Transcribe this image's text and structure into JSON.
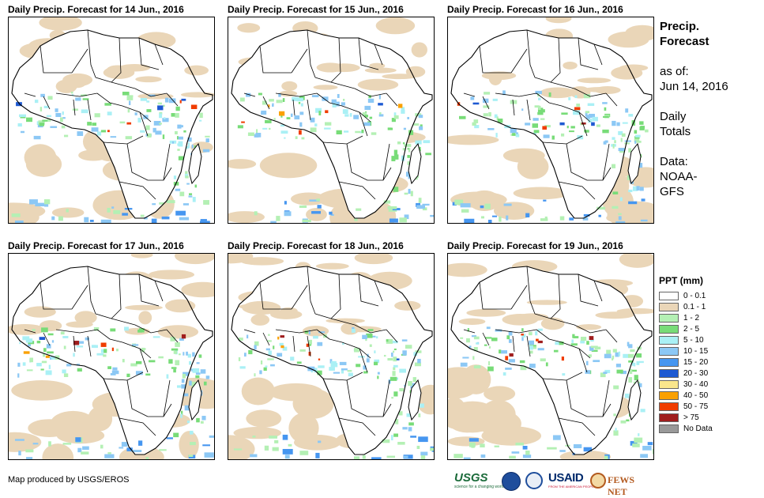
{
  "panels": [
    {
      "title": "Daily Precip. Forecast for 14 Jun., 2016"
    },
    {
      "title": "Daily Precip. Forecast for 15 Jun., 2016"
    },
    {
      "title": "Daily Precip. Forecast for 16 Jun., 2016"
    },
    {
      "title": "Daily Precip. Forecast for 17 Jun., 2016"
    },
    {
      "title": "Daily Precip. Forecast for 18 Jun., 2016"
    },
    {
      "title": "Daily Precip. Forecast for 19 Jun., 2016"
    }
  ],
  "sidebar": {
    "title_line1": "Precip.",
    "title_line2": "Forecast",
    "asof_label": "as of:",
    "asof_date": "Jun 14, 2016",
    "totals_line1": "Daily",
    "totals_line2": "Totals",
    "data_line1": "Data:",
    "data_line2": "NOAA-",
    "data_line3": "GFS"
  },
  "legend": {
    "title": "PPT (mm)",
    "items": [
      {
        "label": "0 - 0.1",
        "color": "#ffffff"
      },
      {
        "label": "0.1 - 1",
        "color": "#ead6b8"
      },
      {
        "label": "1 - 2",
        "color": "#b4f0b4"
      },
      {
        "label": "2 - 5",
        "color": "#78dc78"
      },
      {
        "label": "5 - 10",
        "color": "#aaf0f5"
      },
      {
        "label": "10 - 15",
        "color": "#8cc8f5"
      },
      {
        "label": "15 - 20",
        "color": "#4696f0"
      },
      {
        "label": "20 - 30",
        "color": "#1e5ad2"
      },
      {
        "label": "30 - 40",
        "color": "#fae68c"
      },
      {
        "label": "40 - 50",
        "color": "#faa000"
      },
      {
        "label": "50 - 75",
        "color": "#f03c00"
      },
      {
        "label": "> 75",
        "color": "#a01e1e"
      },
      {
        "label": "No Data",
        "color": "#999999"
      }
    ]
  },
  "credit": "Map produced by USGS/EROS",
  "logos": {
    "usgs_name": "USGS",
    "usgs_tagline": "science for a changing world",
    "usaid_name": "USAID",
    "usaid_tagline": "FROM THE AMERICAN PEOPLE",
    "fews_name": "FEWS NET"
  },
  "colors": {
    "sand": "#ead6b8",
    "lightgreen": "#b4f0b4",
    "green": "#78dc78",
    "cyan": "#aaf0f5",
    "lightblue": "#8cc8f5",
    "blue": "#4696f0",
    "darkblue": "#1e5ad2",
    "orange": "#faa000",
    "red": "#f03c00",
    "darkred": "#a01e1e"
  }
}
